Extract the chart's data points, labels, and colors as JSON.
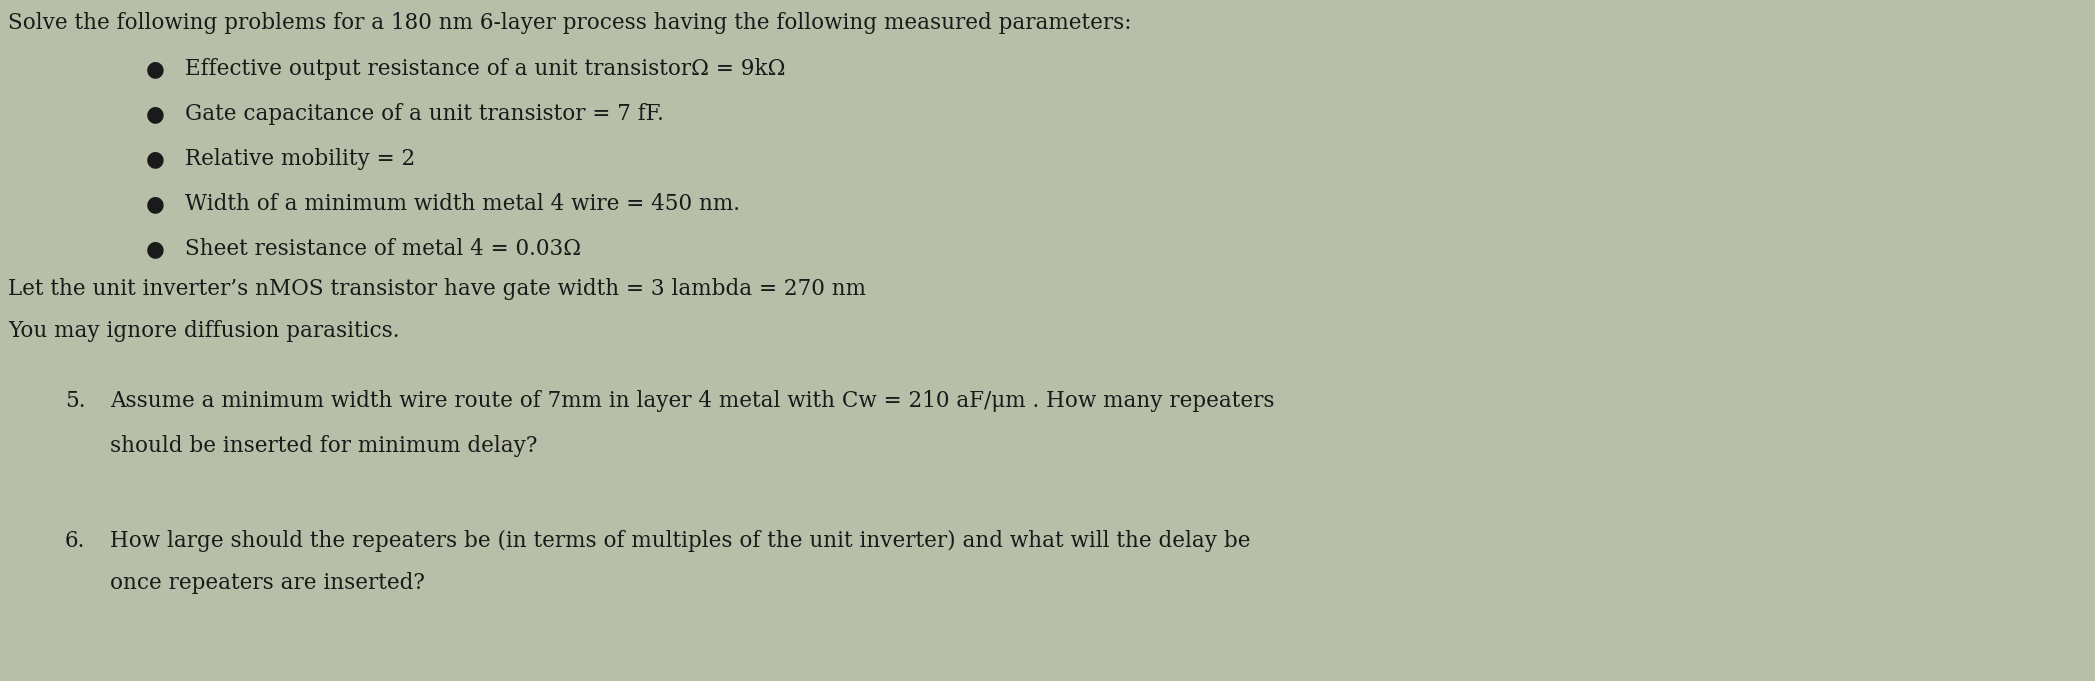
{
  "bg_color": "#b8bfa8",
  "text_color": "#1a1a1a",
  "title_line": "Solve the following problems for a 180 nm 6-layer process having the following measured parameters:",
  "bullets": [
    "Effective output resistance of a unit transistorΩ = 9kΩ",
    "Gate capacitance of a unit transistor = 7 fF.",
    "Relative mobility = 2",
    "Width of a minimum width metal 4 wire = 450 nm.",
    "Sheet resistance of metal 4 = 0.03Ω"
  ],
  "line1": "Let the unit inverter’s nMOS transistor have gate width = 3 lambda = 270 nm",
  "line2": "You may ignore diffusion parasitics.",
  "q5_num": "5.",
  "q5_text_line1": "Assume a minimum width wire route of 7mm in layer 4 metal with Cw = 210 aF/μm . How many repeaters",
  "q5_text_line2": "should be inserted for minimum delay?",
  "q6_num": "6.",
  "q6_text_line1": "How large should the repeaters be (in terms of multiples of the unit inverter) and what will the delay be",
  "q6_text_line2": "once repeaters are inserted?",
  "figwidth": 20.95,
  "figheight": 6.81,
  "dpi": 100
}
